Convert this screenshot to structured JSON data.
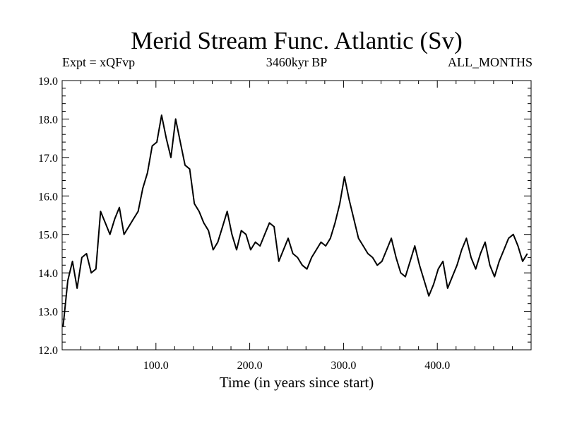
{
  "chart_data": {
    "type": "line",
    "title": "Merid Stream Func. Atlantic (Sv)",
    "subtitle_left": "Expt = xQFvp",
    "subtitle_center": "3460kyr BP",
    "subtitle_right": "ALL_MONTHS",
    "xlabel": "Time (in years since start)",
    "ylabel": "",
    "xlim": [
      0,
      500
    ],
    "ylim": [
      12.0,
      19.0
    ],
    "x_ticks": [
      100,
      200,
      300,
      400
    ],
    "x_tick_labels": [
      "100.0",
      "200.0",
      "300.0",
      "400.0"
    ],
    "y_ticks": [
      12,
      13,
      14,
      15,
      16,
      17,
      18,
      19
    ],
    "y_tick_labels": [
      "12.0",
      "13.0",
      "14.0",
      "15.0",
      "16.0",
      "17.0",
      "18.0",
      "19.0"
    ],
    "series": [
      {
        "name": "Merid Stream Func. Atlantic",
        "x_start": 1,
        "x_step": 5,
        "values": [
          12.6,
          13.8,
          14.3,
          13.6,
          14.4,
          14.5,
          14.0,
          14.1,
          15.6,
          15.3,
          15.0,
          15.4,
          15.7,
          15.0,
          15.2,
          15.4,
          15.6,
          16.2,
          16.6,
          17.3,
          17.4,
          18.1,
          17.5,
          17.0,
          18.0,
          17.4,
          16.8,
          16.7,
          15.8,
          15.6,
          15.3,
          15.1,
          14.6,
          14.8,
          15.2,
          15.6,
          15.0,
          14.6,
          15.1,
          15.0,
          14.6,
          14.8,
          14.7,
          15.0,
          15.3,
          15.2,
          14.3,
          14.6,
          14.9,
          14.5,
          14.4,
          14.2,
          14.1,
          14.4,
          14.6,
          14.8,
          14.7,
          14.9,
          15.3,
          15.8,
          16.5,
          15.9,
          15.4,
          14.9,
          14.7,
          14.5,
          14.4,
          14.2,
          14.3,
          14.6,
          14.9,
          14.4,
          14.0,
          13.9,
          14.3,
          14.7,
          14.2,
          13.8,
          13.4,
          13.7,
          14.1,
          14.3,
          13.6,
          13.9,
          14.2,
          14.6,
          14.9,
          14.4,
          14.1,
          14.5,
          14.8,
          14.2,
          13.9,
          14.3,
          14.6,
          14.9,
          15.0,
          14.7,
          14.3,
          14.5
        ]
      }
    ]
  }
}
